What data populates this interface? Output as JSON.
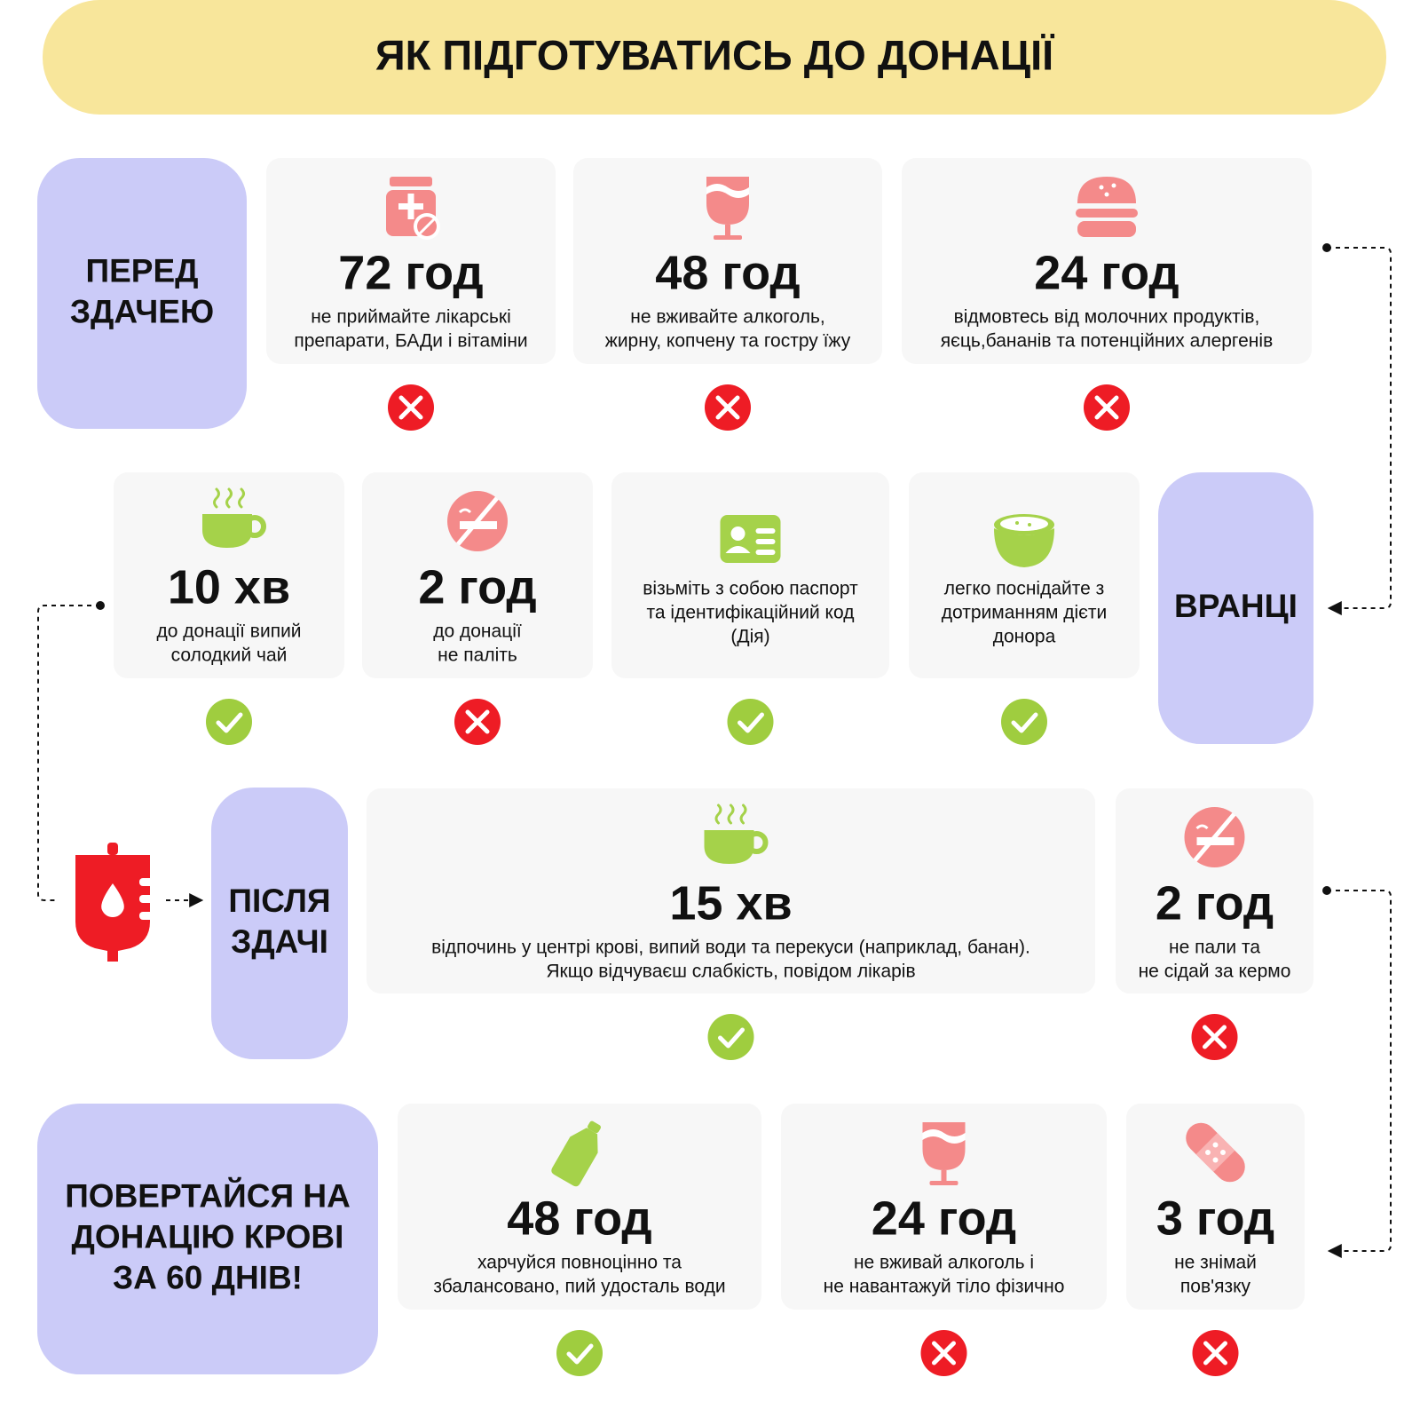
{
  "title": "ЯК ПІДГОТУВАТИСЬ ДО ДОНАЦІЇ",
  "sections": [
    {
      "label": [
        "ПЕРЕД",
        "ЗДАЧЕЮ"
      ],
      "items": [
        {
          "time": "72 год",
          "text": [
            "не приймайте лікарські",
            "препарати, БАДи і вітаміни"
          ],
          "allowed": false
        },
        {
          "time": "48 год",
          "text": [
            "не вживайте алкоголь,",
            "жирну, копчену та гостру їжу"
          ],
          "allowed": false
        },
        {
          "time": "24 год",
          "text": [
            "відмовтесь від молочних продуктів,",
            "яєць,бананів та потенційних алергенів"
          ],
          "allowed": false
        }
      ]
    },
    {
      "label": [
        "ВРАНЦІ"
      ],
      "items": [
        {
          "time": "10 хв",
          "text": [
            "до донації випий",
            "солодкий чай"
          ],
          "allowed": true
        },
        {
          "time": "2 год",
          "text": [
            "до донації",
            "не паліть"
          ],
          "allowed": false
        },
        {
          "text": [
            "візьміть з собою паспорт",
            "та ідентифікаційний код",
            "(Дія)"
          ],
          "allowed": true
        },
        {
          "text": [
            "легко поснідайте з",
            "дотриманням дієти",
            "донора"
          ],
          "allowed": true
        }
      ]
    },
    {
      "label": [
        "ПІСЛЯ",
        "ЗДАЧІ"
      ],
      "items": [
        {
          "time": "15 хв",
          "text": [
            "відпочинь у центрі крові, випий води та перекуси (наприклад, банан).",
            "Якщо відчуваєш слабкість, повідом лікарів"
          ],
          "allowed": true
        },
        {
          "time": "2 год",
          "text": [
            "не пали та",
            "не сідай за кермо"
          ],
          "allowed": false
        }
      ]
    },
    {
      "label": [
        "ПОВЕРТАЙСЯ НА",
        "ДОНАЦІЮ КРОВІ",
        "ЗА 60 ДНІВ!"
      ],
      "items": [
        {
          "time": "48 год",
          "text": [
            "харчуйся повноцінно та",
            "збалансовано, пий удосталь води"
          ],
          "allowed": true
        },
        {
          "time": "24 год",
          "text": [
            "не вживай алкоголь і",
            "не навантажуй тіло фізично"
          ],
          "allowed": false
        },
        {
          "time": "3 год",
          "text": [
            "не знімай",
            "пов'язку"
          ],
          "allowed": false
        }
      ]
    }
  ]
}
